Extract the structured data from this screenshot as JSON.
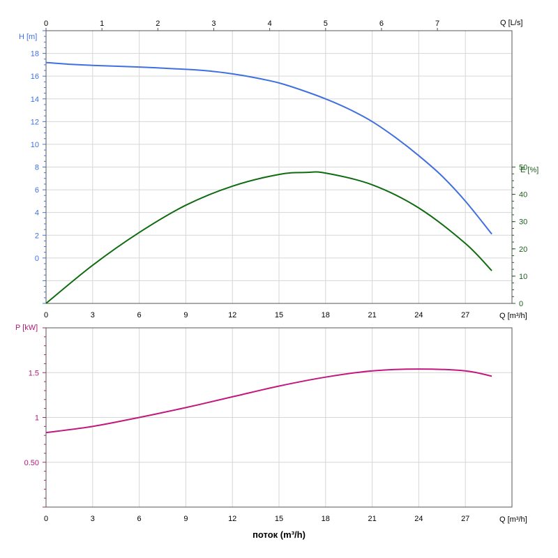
{
  "colors": {
    "head": "#3f6fe0",
    "efficiency": "#0f6b0f",
    "power": "#c2177f",
    "axis_h": "#3f6fe0",
    "axis_e": "#1c5e1c",
    "axis_p": "#b01a77",
    "grid": "#d6d6d6",
    "frame": "#555555"
  },
  "x_axis_label": "поток (m³/h)",
  "chart_data": [
    {
      "type": "line",
      "panel": "top",
      "x_unit_label": "Q [m³/h]",
      "x_ticks": [
        0,
        3,
        6,
        9,
        12,
        15,
        18,
        21,
        24,
        27
      ],
      "xlim": [
        0,
        30
      ],
      "secondary_x": {
        "unit_label": "Q [L/s]",
        "ticks": [
          0,
          1,
          2,
          3,
          4,
          5,
          6,
          7
        ]
      },
      "left_axis": {
        "label": "H [m]",
        "ticks": [
          0,
          2,
          4,
          6,
          8,
          10,
          12,
          14,
          16,
          18
        ],
        "ylim": [
          -4,
          20
        ]
      },
      "right_axis": {
        "label": "E [%]",
        "ticks": [
          0,
          10,
          20,
          30,
          40,
          50
        ],
        "ylim": [
          0,
          100
        ]
      },
      "grid": true,
      "series": [
        {
          "axis": "left",
          "x": [
            0,
            1.5,
            3,
            6,
            9,
            10.5,
            12,
            13.5,
            15,
            16.5,
            18,
            19.5,
            21,
            22.5,
            24,
            25.5,
            27,
            28.7
          ],
          "values": [
            17.2,
            17.05,
            16.95,
            16.8,
            16.6,
            16.45,
            16.2,
            15.85,
            15.4,
            14.75,
            14.0,
            13.1,
            12.0,
            10.6,
            9.0,
            7.2,
            5.0,
            2.1
          ]
        },
        {
          "axis": "right",
          "x": [
            0,
            3,
            6,
            9,
            12,
            15,
            16.7,
            18,
            21,
            24,
            27,
            28.7
          ],
          "values": [
            0,
            14,
            26,
            36,
            43,
            47.3,
            48,
            47.8,
            43.5,
            35,
            22,
            12
          ]
        }
      ]
    },
    {
      "type": "line",
      "panel": "bottom",
      "x_unit_label": "Q [m³/h]",
      "x_ticks": [
        0,
        3,
        6,
        9,
        12,
        15,
        18,
        21,
        24,
        27
      ],
      "xlim": [
        0,
        30
      ],
      "left_axis": {
        "label": "P [kW]",
        "ticks": [
          "0.50",
          "1",
          "1.5"
        ],
        "ylim": [
          0,
          2
        ]
      },
      "grid": true,
      "series": [
        {
          "axis": "left",
          "x": [
            0,
            3,
            6,
            9,
            12,
            15,
            18,
            21,
            24,
            27,
            28.7
          ],
          "values": [
            0.83,
            0.9,
            1.0,
            1.11,
            1.23,
            1.35,
            1.45,
            1.52,
            1.54,
            1.52,
            1.46
          ]
        }
      ]
    }
  ]
}
